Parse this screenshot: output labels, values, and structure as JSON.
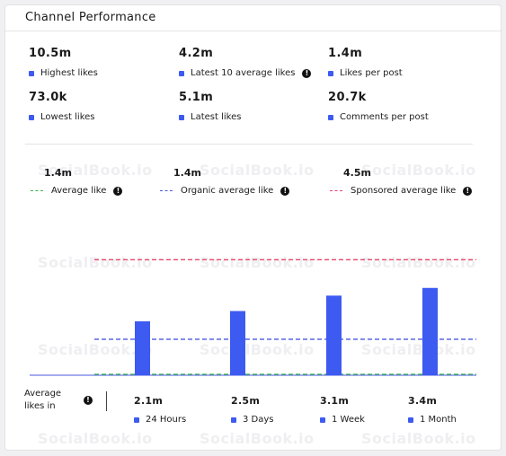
{
  "title": "Channel Performance",
  "watermark": "SocialBook.io",
  "colors": {
    "bar": "#3d5af1",
    "average": "#3bb54a",
    "organic": "#4a57e0",
    "sponsored": "#e8466b"
  },
  "stats": [
    {
      "value": "10.5m",
      "label": "Highest likes",
      "info": false
    },
    {
      "value": "4.2m",
      "label": "Latest 10 average likes",
      "info": true
    },
    {
      "value": "1.4m",
      "label": "Likes per post",
      "info": false
    },
    {
      "value": "73.0k",
      "label": "Lowest likes",
      "info": false
    },
    {
      "value": "5.1m",
      "label": "Latest likes",
      "info": false
    },
    {
      "value": "20.7k",
      "label": "Comments per post",
      "info": false
    }
  ],
  "legend": [
    {
      "value": "1.4m",
      "label": "Average like"
    },
    {
      "value": "1.4m",
      "label": "Organic average like"
    },
    {
      "value": "4.5m",
      "label": "Sponsored average like"
    }
  ],
  "bottom_label": "Average likes in",
  "chart_data": {
    "type": "bar",
    "categories": [
      "24 Hours",
      "3 Days",
      "1 Week",
      "1 Month"
    ],
    "values": [
      2.1,
      2.5,
      3.1,
      3.4
    ],
    "value_labels": [
      "2.1m",
      "2.5m",
      "3.1m",
      "3.4m"
    ],
    "unit": "m",
    "reference_lines": [
      {
        "name": "Average like",
        "value": 1.4,
        "style": "dashed"
      },
      {
        "name": "Organic average like",
        "value": 1.4,
        "style": "dashed"
      },
      {
        "name": "Sponsored average like",
        "value": 4.5,
        "style": "dashed"
      }
    ],
    "ylim": [
      0,
      5
    ],
    "grid": false
  }
}
